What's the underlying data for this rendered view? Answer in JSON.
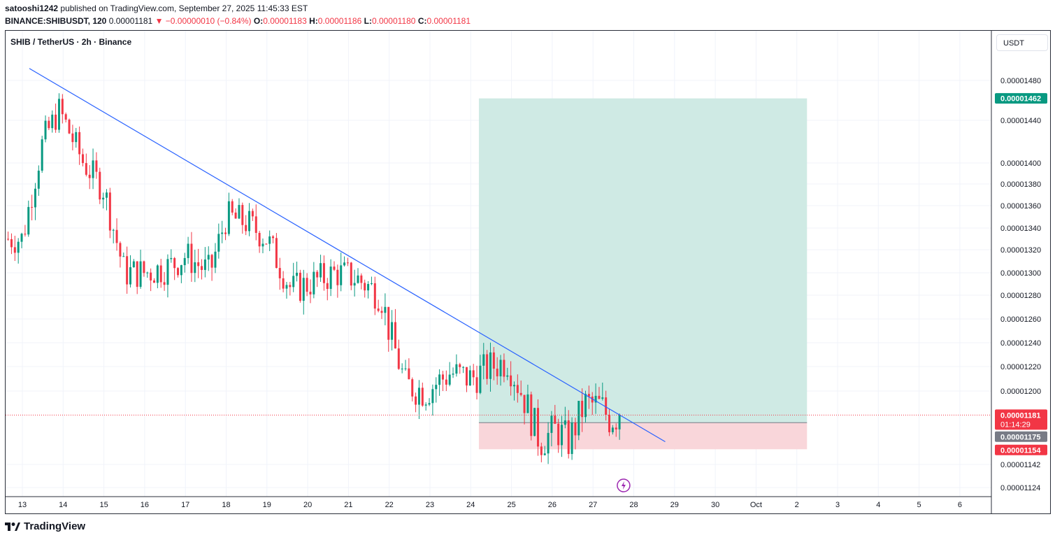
{
  "header": {
    "publisher": "satooshi1242",
    "published_text": "published on TradingView.com, September 27, 2025 11:45:33 EST",
    "symbol_line": "BINANCE:SHIBUSDT, 120",
    "last": "0.00001181",
    "change": "▼ −0.00000010 (−0.84%)",
    "o_label": "O:",
    "o": "0.00001183",
    "h_label": "H:",
    "h": "0.00001186",
    "l_label": "L:",
    "l": "0.00001180",
    "c_label": "C:",
    "c": "0.00001181"
  },
  "pane_title": "SHIB / TetherUS · 2h · Binance",
  "currency_button": "USDT",
  "footer": {
    "brand": "TradingView",
    "logo_icon": "tradingview-logo-icon"
  },
  "colors": {
    "up": "#089981",
    "down": "#f23645",
    "trendline": "#2962ff",
    "target_zone": "#cfeae4",
    "stop_zone": "#f9d6da",
    "current_price_line": "#f23645"
  },
  "chart_data": {
    "type": "candlestick",
    "symbol": "SHIBUSDT",
    "interval": "2h",
    "x_ticks": [
      "13",
      "14",
      "15",
      "16",
      "17",
      "18",
      "19",
      "20",
      "21",
      "22",
      "23",
      "24",
      "25",
      "26",
      "27",
      "28",
      "29",
      "30",
      "Oct",
      "2",
      "3",
      "4",
      "5",
      "6"
    ],
    "y_ticks": [
      "0.00001480",
      "0.00001440",
      "0.00001400",
      "0.00001380",
      "0.00001360",
      "0.00001340",
      "0.00001320",
      "0.00001300",
      "0.00001280",
      "0.00001260",
      "0.00001240",
      "0.00001220",
      "0.00001200",
      "0.00001142",
      "0.00001124"
    ],
    "price_labels": {
      "target": "0.00001462",
      "last": "0.00001181",
      "countdown": "01:14:29",
      "entry": "0.00001175",
      "stop": "0.00001154"
    },
    "long_position": {
      "entry": 1.175e-05,
      "target": 1.462e-05,
      "stop": 1.154e-05,
      "from_date": "Sep 24",
      "to_date": "Oct 2"
    },
    "trendline": {
      "from": {
        "date": "Sep 13",
        "price": 1.492e-05
      },
      "to": {
        "date": "Sep 28",
        "price": 1.155e-05
      }
    },
    "path_daily": [
      [
        "Sep 13",
        1.33e-05
      ],
      [
        "Sep 13.5",
        1.42e-05
      ],
      [
        "Sep 13.9",
        1.45e-05
      ],
      [
        "Sep 14.5",
        1.4e-05
      ],
      [
        "Sep 15",
        1.375e-05
      ],
      [
        "Sep 15.5",
        1.3e-05
      ],
      [
        "Sep 16",
        1.3e-05
      ],
      [
        "Sep 16.6",
        1.305e-05
      ],
      [
        "Sep 17",
        1.315e-05
      ],
      [
        "Sep 17.6",
        1.3e-05
      ],
      [
        "Sep 18",
        1.35e-05
      ],
      [
        "Sep 18.5",
        1.345e-05
      ],
      [
        "Sep 19",
        1.33e-05
      ],
      [
        "Sep 19.6",
        1.285e-05
      ],
      [
        "Sep 20",
        1.29e-05
      ],
      [
        "Sep 20.7",
        1.3e-05
      ],
      [
        "Sep 21.2",
        1.295e-05
      ],
      [
        "Sep 21.8",
        1.28e-05
      ],
      [
        "Sep 22",
        1.25e-05
      ],
      [
        "Sep 22.4",
        1.205e-05
      ],
      [
        "Sep 22.9",
        1.2e-05
      ],
      [
        "Sep 23.5",
        1.215e-05
      ],
      [
        "Sep 24",
        1.21e-05
      ],
      [
        "Sep 24.5",
        1.22e-05
      ],
      [
        "Sep 24.9",
        1.225e-05
      ],
      [
        "Sep 25.3",
        1.195e-05
      ],
      [
        "Sep 25.7",
        1.16e-05
      ],
      [
        "Sep 26.1",
        1.17e-05
      ],
      [
        "Sep 26.4",
        1.16e-05
      ],
      [
        "Sep 26.8",
        1.19e-05
      ],
      [
        "Sep 27.2",
        1.188e-05
      ],
      [
        "Sep 27.4",
        1.178e-05
      ],
      [
        "Sep 27.7",
        1.181e-05
      ]
    ]
  }
}
